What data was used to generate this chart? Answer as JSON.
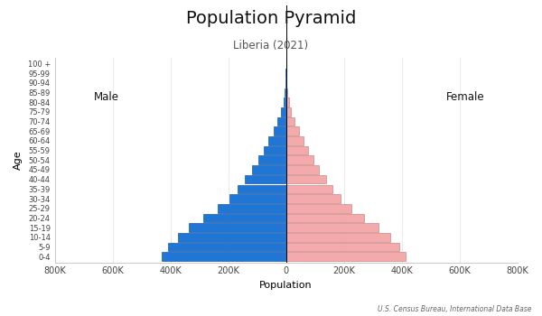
{
  "title": "Population Pyramid",
  "subtitle": "Liberia (2021)",
  "xlabel": "Population",
  "ylabel": "Age",
  "source": "U.S. Census Bureau, International Data Base",
  "age_groups": [
    "0-4",
    "5-9",
    "10-14",
    "15-19",
    "20-24",
    "25-29",
    "30-34",
    "35-39",
    "40-44",
    "45-49",
    "50-54",
    "55-59",
    "60-64",
    "65-69",
    "70-74",
    "75-79",
    "80-84",
    "85-89",
    "90-94",
    "95-99",
    "100 +"
  ],
  "male": [
    430000,
    408000,
    375000,
    335000,
    285000,
    237000,
    197000,
    167000,
    143000,
    118000,
    97000,
    77000,
    60000,
    44000,
    30000,
    18000,
    9500,
    4500,
    1800,
    600,
    120
  ],
  "female": [
    413000,
    392000,
    360000,
    320000,
    270000,
    226000,
    188000,
    162000,
    138000,
    115000,
    94000,
    75000,
    59000,
    44000,
    30000,
    18000,
    9500,
    4500,
    1800,
    600,
    120
  ],
  "male_color": "#2076D4",
  "female_color": "#F4AAAA",
  "male_edge": "#1a5aaa",
  "female_edge": "#cc8888",
  "xlim": 800000,
  "xticks": [
    -800000,
    -600000,
    -400000,
    -200000,
    0,
    200000,
    400000,
    600000,
    800000
  ],
  "xtick_labels": [
    "800K",
    "600K",
    "400K",
    "200K",
    "0",
    "200K",
    "400K",
    "600K",
    "800K"
  ],
  "bg_color": "#ffffff",
  "spine_color": "#cccccc",
  "grid_color": "#e0e0e0"
}
